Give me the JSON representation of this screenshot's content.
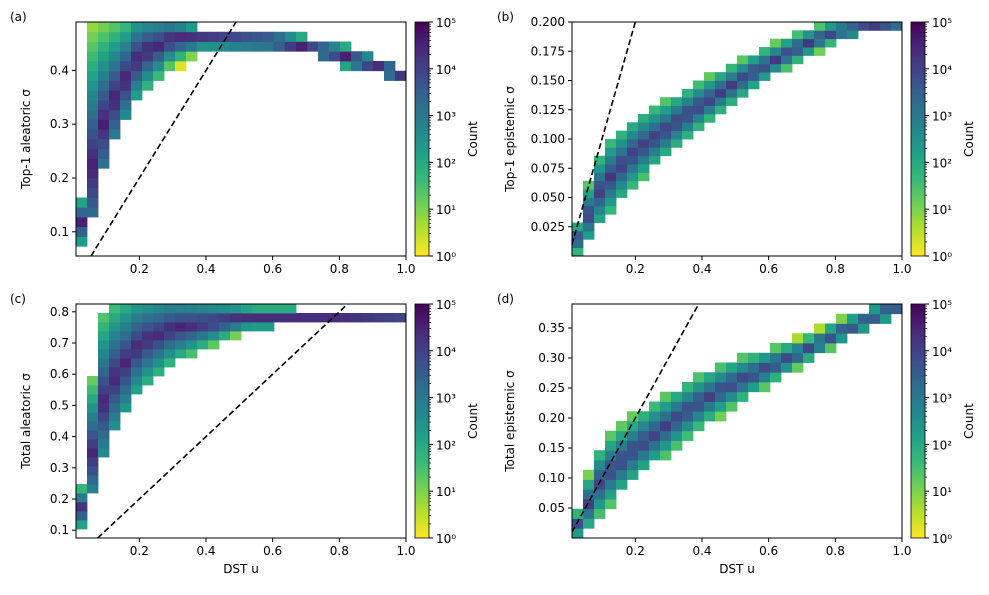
{
  "colormap": [
    "#fde725",
    "#b5de2b",
    "#6ece58",
    "#35b779",
    "#1f9e89",
    "#26828e",
    "#31688e",
    "#3e4989",
    "#482878",
    "#440154"
  ],
  "dashed_line_color": "#000000",
  "chart_data": [
    {
      "type": "heatmap",
      "panel_label": "(a)",
      "xlabel": "",
      "ylabel": "Top-1 aleatoric σ",
      "xlim": [
        0.01,
        1.0
      ],
      "ylim": [
        0.055,
        0.49
      ],
      "xticks": [
        0.2,
        0.4,
        0.6,
        0.8,
        1.0
      ],
      "xtick_labels": [
        "0.2",
        "0.4",
        "0.6",
        "0.8",
        "1.0"
      ],
      "yticks": [
        0.1,
        0.2,
        0.3,
        0.4
      ],
      "ytick_labels": [
        "0.1",
        "0.2",
        "0.3",
        "0.4"
      ],
      "diagonal": "y = x",
      "colorbar_label": "Count",
      "colorbar_range": [
        1,
        100000
      ],
      "colorbar_ticks": [
        "10⁰",
        "10¹",
        "10²",
        "10³",
        "10⁴",
        "10⁵"
      ],
      "bins": [
        30,
        24
      ],
      "band": {
        "lower": [
          [
            0.01,
            0.055
          ],
          [
            0.04,
            0.09
          ],
          [
            0.07,
            0.17
          ],
          [
            0.1,
            0.25
          ],
          [
            0.15,
            0.31
          ],
          [
            0.2,
            0.355
          ],
          [
            0.3,
            0.41
          ],
          [
            0.4,
            0.44
          ],
          [
            0.5,
            0.45
          ],
          [
            0.6,
            0.45
          ],
          [
            0.7,
            0.44
          ],
          [
            0.8,
            0.42
          ],
          [
            0.9,
            0.405
          ],
          [
            1.0,
            0.385
          ]
        ],
        "upper": [
          [
            0.01,
            0.055
          ],
          [
            0.04,
            0.23
          ],
          [
            0.05,
            0.49
          ],
          [
            0.2,
            0.49
          ],
          [
            0.4,
            0.47
          ],
          [
            0.6,
            0.465
          ],
          [
            0.8,
            0.445
          ],
          [
            0.9,
            0.42
          ],
          [
            1.0,
            0.395
          ]
        ],
        "peak": [
          [
            0.01,
            0.06
          ],
          [
            0.05,
            0.2
          ],
          [
            0.1,
            0.32
          ],
          [
            0.2,
            0.43
          ],
          [
            0.3,
            0.46
          ],
          [
            0.4,
            0.46
          ],
          [
            0.6,
            0.455
          ],
          [
            0.8,
            0.43
          ],
          [
            1.0,
            0.39
          ]
        ],
        "peak_log_count": 4.6,
        "falloff": 3.2
      }
    },
    {
      "type": "heatmap",
      "panel_label": "(b)",
      "xlabel": "",
      "ylabel": "Top-1 epistemic σ",
      "xlim": [
        0.01,
        1.0
      ],
      "ylim": [
        0.0,
        0.2
      ],
      "xticks": [
        0.2,
        0.4,
        0.6,
        0.8,
        1.0
      ],
      "xtick_labels": [
        "0.2",
        "0.4",
        "0.6",
        "0.8",
        "1.0"
      ],
      "yticks": [
        0.025,
        0.05,
        0.075,
        0.1,
        0.125,
        0.15,
        0.175,
        0.2
      ],
      "ytick_labels": [
        "0.025",
        "0.050",
        "0.075",
        "0.100",
        "0.125",
        "0.150",
        "0.175",
        "0.200"
      ],
      "diagonal": "y = x",
      "colorbar_label": "Count",
      "colorbar_range": [
        1,
        100000
      ],
      "colorbar_ticks": [
        "10⁰",
        "10¹",
        "10²",
        "10³",
        "10⁴",
        "10⁵"
      ],
      "bins": [
        30,
        28
      ],
      "band": {
        "lower": [
          [
            0.01,
            0.0
          ],
          [
            0.05,
            0.015
          ],
          [
            0.1,
            0.035
          ],
          [
            0.2,
            0.065
          ],
          [
            0.3,
            0.09
          ],
          [
            0.4,
            0.115
          ],
          [
            0.5,
            0.135
          ],
          [
            0.6,
            0.155
          ],
          [
            0.7,
            0.17
          ],
          [
            0.8,
            0.185
          ],
          [
            0.9,
            0.195
          ],
          [
            1.0,
            0.2
          ]
        ],
        "upper": [
          [
            0.01,
            0.01
          ],
          [
            0.05,
            0.055
          ],
          [
            0.1,
            0.09
          ],
          [
            0.2,
            0.115
          ],
          [
            0.3,
            0.13
          ],
          [
            0.4,
            0.148
          ],
          [
            0.5,
            0.163
          ],
          [
            0.6,
            0.178
          ],
          [
            0.7,
            0.19
          ],
          [
            0.8,
            0.2
          ],
          [
            1.0,
            0.205
          ]
        ],
        "peak": [
          [
            0.01,
            0.005
          ],
          [
            0.1,
            0.06
          ],
          [
            0.2,
            0.09
          ],
          [
            0.3,
            0.11
          ],
          [
            0.4,
            0.13
          ],
          [
            0.5,
            0.148
          ],
          [
            0.6,
            0.165
          ],
          [
            0.7,
            0.18
          ],
          [
            0.8,
            0.192
          ],
          [
            1.0,
            0.2
          ]
        ],
        "peak_log_count": 4.2,
        "falloff": 3.0
      }
    },
    {
      "type": "heatmap",
      "panel_label": "(c)",
      "xlabel": "DST u",
      "ylabel": "Total aleatoric σ",
      "xlim": [
        0.01,
        1.0
      ],
      "ylim": [
        0.075,
        0.825
      ],
      "xticks": [
        0.2,
        0.4,
        0.6,
        0.8,
        1.0
      ],
      "xtick_labels": [
        "0.2",
        "0.4",
        "0.6",
        "0.8",
        "1.0"
      ],
      "yticks": [
        0.1,
        0.2,
        0.3,
        0.4,
        0.5,
        0.6,
        0.7,
        0.8
      ],
      "ytick_labels": [
        "0.1",
        "0.2",
        "0.3",
        "0.4",
        "0.5",
        "0.6",
        "0.7",
        "0.8"
      ],
      "diagonal": "y = x",
      "colorbar_label": "Count",
      "colorbar_range": [
        1,
        100000
      ],
      "colorbar_ticks": [
        "10⁰",
        "10¹",
        "10²",
        "10³",
        "10⁴",
        "10⁵"
      ],
      "bins": [
        30,
        26
      ],
      "band": {
        "lower": [
          [
            0.01,
            0.075
          ],
          [
            0.04,
            0.15
          ],
          [
            0.07,
            0.28
          ],
          [
            0.1,
            0.39
          ],
          [
            0.15,
            0.48
          ],
          [
            0.2,
            0.56
          ],
          [
            0.3,
            0.64
          ],
          [
            0.4,
            0.7
          ],
          [
            0.5,
            0.74
          ],
          [
            0.6,
            0.77
          ],
          [
            0.7,
            0.78
          ],
          [
            0.8,
            0.775
          ],
          [
            1.0,
            0.77
          ]
        ],
        "upper": [
          [
            0.01,
            0.1
          ],
          [
            0.05,
            0.4
          ],
          [
            0.07,
            0.76
          ],
          [
            0.15,
            0.825
          ],
          [
            0.4,
            0.82
          ],
          [
            0.6,
            0.8
          ],
          [
            0.8,
            0.79
          ],
          [
            1.0,
            0.78
          ]
        ],
        "peak": [
          [
            0.01,
            0.08
          ],
          [
            0.05,
            0.3
          ],
          [
            0.1,
            0.55
          ],
          [
            0.2,
            0.7
          ],
          [
            0.3,
            0.75
          ],
          [
            0.5,
            0.78
          ],
          [
            0.8,
            0.78
          ],
          [
            1.0,
            0.775
          ]
        ],
        "peak_log_count": 4.5,
        "falloff": 3.0
      }
    },
    {
      "type": "heatmap",
      "panel_label": "(d)",
      "xlabel": "DST u",
      "ylabel": "Total epistemic σ",
      "xlim": [
        0.01,
        1.0
      ],
      "ylim": [
        0.0,
        0.39
      ],
      "xticks": [
        0.2,
        0.4,
        0.6,
        0.8,
        1.0
      ],
      "xtick_labels": [
        "0.2",
        "0.4",
        "0.6",
        "0.8",
        "1.0"
      ],
      "yticks": [
        0.05,
        0.1,
        0.15,
        0.2,
        0.25,
        0.3,
        0.35
      ],
      "ytick_labels": [
        "0.05",
        "0.10",
        "0.15",
        "0.20",
        "0.25",
        "0.30",
        "0.35"
      ],
      "diagonal": "y = x",
      "colorbar_label": "Count",
      "colorbar_range": [
        1,
        100000
      ],
      "colorbar_ticks": [
        "10⁰",
        "10¹",
        "10²",
        "10³",
        "10⁴",
        "10⁵"
      ],
      "bins": [
        30,
        24
      ],
      "band": {
        "lower": [
          [
            0.01,
            0.0
          ],
          [
            0.05,
            0.02
          ],
          [
            0.1,
            0.05
          ],
          [
            0.2,
            0.105
          ],
          [
            0.3,
            0.15
          ],
          [
            0.4,
            0.19
          ],
          [
            0.5,
            0.225
          ],
          [
            0.6,
            0.26
          ],
          [
            0.7,
            0.295
          ],
          [
            0.8,
            0.325
          ],
          [
            0.9,
            0.36
          ],
          [
            1.0,
            0.385
          ]
        ],
        "upper": [
          [
            0.01,
            0.015
          ],
          [
            0.05,
            0.09
          ],
          [
            0.1,
            0.15
          ],
          [
            0.2,
            0.2
          ],
          [
            0.3,
            0.235
          ],
          [
            0.4,
            0.265
          ],
          [
            0.5,
            0.29
          ],
          [
            0.6,
            0.31
          ],
          [
            0.7,
            0.33
          ],
          [
            0.8,
            0.355
          ],
          [
            0.9,
            0.375
          ],
          [
            1.0,
            0.39
          ]
        ],
        "peak": [
          [
            0.01,
            0.005
          ],
          [
            0.1,
            0.1
          ],
          [
            0.2,
            0.15
          ],
          [
            0.3,
            0.19
          ],
          [
            0.4,
            0.23
          ],
          [
            0.5,
            0.26
          ],
          [
            0.6,
            0.285
          ],
          [
            0.7,
            0.31
          ],
          [
            0.8,
            0.34
          ],
          [
            0.9,
            0.365
          ],
          [
            1.0,
            0.39
          ]
        ],
        "peak_log_count": 4.1,
        "falloff": 3.0
      }
    }
  ]
}
